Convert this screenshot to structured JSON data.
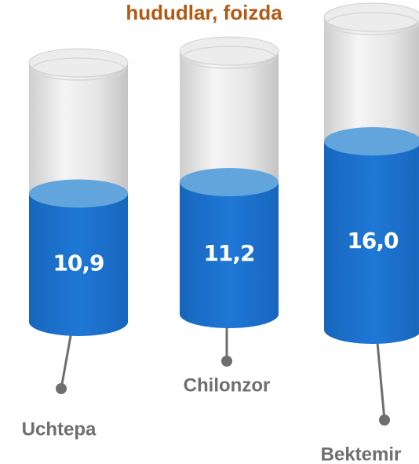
{
  "chart_data": {
    "type": "cylinder",
    "title": "hududlar, foizda",
    "categories": [
      "Uchtepa",
      "Chilonzor",
      "Bektemir"
    ],
    "values": [
      10.9,
      11.2,
      16.0
    ],
    "value_labels": [
      "10,9",
      "11,2",
      "16,0"
    ],
    "color": "#1a6fc9"
  }
}
